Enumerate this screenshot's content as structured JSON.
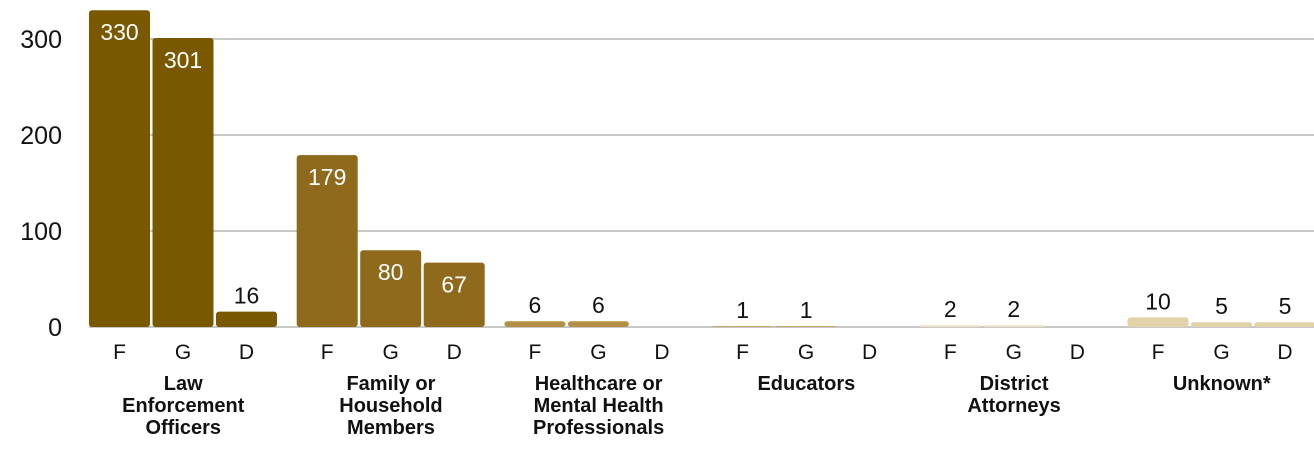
{
  "chart_data": {
    "type": "grouped_bar",
    "subcategories": [
      "F",
      "G",
      "D"
    ],
    "groups": [
      {
        "name": "Law Enforcement Officers",
        "color": "#7a5800",
        "values": [
          330,
          301,
          16
        ]
      },
      {
        "name": "Family or Household Members",
        "color": "#8f6a1c",
        "values": [
          179,
          80,
          67
        ]
      },
      {
        "name": "Healthcare or Mental Health Professionals",
        "color": "#b38f45",
        "values": [
          6,
          6,
          null
        ]
      },
      {
        "name": "Educators",
        "color": "#c9a96b",
        "values": [
          1,
          1,
          null
        ]
      },
      {
        "name": "District Attorneys",
        "color": "#efe3c6",
        "values": [
          2,
          2,
          null
        ]
      },
      {
        "name": "Unknown*",
        "color": "#e2d2a8",
        "values": [
          10,
          5,
          5
        ]
      }
    ],
    "ylim": [
      0,
      340
    ],
    "yticks": [
      0,
      100,
      200,
      300
    ],
    "grid": true
  }
}
